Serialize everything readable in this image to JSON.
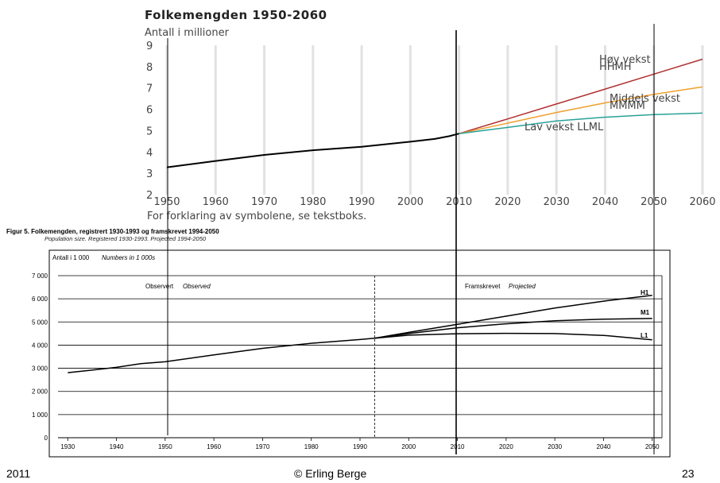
{
  "footer": {
    "left": "2011",
    "center": "© Erling Berge",
    "right": "23"
  },
  "chart_data": [
    {
      "type": "line",
      "title": "Folkemengden 1950-2060",
      "ylabel": "Antall i millioner",
      "footnote": "For forklaring av symbolene, se tekstboks.",
      "xlim": [
        1950,
        2060
      ],
      "ylim": [
        2,
        9
      ],
      "x_ticks": [
        "1950",
        "1960",
        "1970",
        "1980",
        "1990",
        "2000",
        "2010",
        "2020",
        "2030",
        "2040",
        "2050",
        "2060"
      ],
      "y_ticks": [
        "2",
        "3",
        "4",
        "5",
        "6",
        "7",
        "8",
        "9"
      ],
      "colors": {
        "observed": "#000000",
        "high": "#b03030",
        "middle": "#f0a030",
        "low": "#2aa198",
        "grid": "#e2e2e2"
      },
      "series": [
        {
          "key": "observed",
          "x": [
            1950,
            1960,
            1970,
            1980,
            1990,
            2000,
            2005,
            2008,
            2010
          ],
          "y": [
            3.28,
            3.58,
            3.86,
            4.08,
            4.24,
            4.48,
            4.61,
            4.74,
            4.86
          ]
        },
        {
          "key": "high",
          "name": "Høy vekst HHMH",
          "x": [
            2010,
            2020,
            2030,
            2040,
            2050,
            2060
          ],
          "y": [
            4.86,
            5.55,
            6.25,
            6.95,
            7.65,
            8.35
          ]
        },
        {
          "key": "middle",
          "name": "Middels vekst MMMM",
          "x": [
            2010,
            2020,
            2030,
            2040,
            2050,
            2060
          ],
          "y": [
            4.86,
            5.35,
            5.85,
            6.3,
            6.7,
            7.05
          ]
        },
        {
          "key": "low",
          "name": "Lav vekst LLML",
          "x": [
            2010,
            2020,
            2030,
            2040,
            2050,
            2060
          ],
          "y": [
            4.86,
            5.15,
            5.45,
            5.63,
            5.75,
            5.82
          ]
        }
      ],
      "labels": [
        {
          "series": "high",
          "lines": [
            "Høy vekst",
            "HHMH"
          ]
        },
        {
          "series": "middle",
          "lines": [
            "Middels vekst",
            "MMMM"
          ]
        },
        {
          "series": "low",
          "lines": [
            "Lav vekst LLML"
          ]
        }
      ]
    },
    {
      "type": "line",
      "caption": "Figur 5.  Folkemengden, registrert 1930-1993 og framskrevet 1994-2050",
      "caption_en": "Population size. Registered 1930-1993. Projected 1994-2050",
      "ylabel": "Antall i 1 000",
      "ylabel_en": "Numbers in 1 000s",
      "xlim": [
        1928,
        2052
      ],
      "ylim": [
        0,
        7000
      ],
      "x_ticks": [
        "1930",
        "1940",
        "1950",
        "1960",
        "1970",
        "1980",
        "1990",
        "2000",
        "2010",
        "2020",
        "2030",
        "2040",
        "2050"
      ],
      "y_ticks": [
        "0",
        "1 000",
        "2 000",
        "3 000",
        "4 000",
        "5 000",
        "6 000",
        "7 000"
      ],
      "divider_x": 1993,
      "observed_label": "Observert",
      "observed_label_en": "Observed",
      "projected_label": "Framskrevet",
      "projected_label_en": "Projected",
      "series": [
        {
          "key": "observed",
          "x": [
            1930,
            1935,
            1940,
            1945,
            1950,
            1960,
            1970,
            1980,
            1990,
            1993
          ],
          "y": [
            2810,
            2920,
            3040,
            3200,
            3280,
            3580,
            3860,
            4080,
            4240,
            4300
          ]
        },
        {
          "key": "h1",
          "name": "H1",
          "x": [
            1993,
            2000,
            2010,
            2020,
            2030,
            2040,
            2050
          ],
          "y": [
            4300,
            4550,
            4900,
            5250,
            5600,
            5900,
            6150
          ]
        },
        {
          "key": "m1",
          "name": "M1",
          "x": [
            1993,
            2000,
            2010,
            2020,
            2030,
            2040,
            2050
          ],
          "y": [
            4300,
            4500,
            4750,
            4920,
            5050,
            5120,
            5150
          ]
        },
        {
          "key": "l1",
          "name": "L1",
          "x": [
            1993,
            2000,
            2010,
            2020,
            2030,
            2040,
            2050
          ],
          "y": [
            4300,
            4430,
            4490,
            4510,
            4500,
            4420,
            4230
          ]
        }
      ]
    }
  ]
}
